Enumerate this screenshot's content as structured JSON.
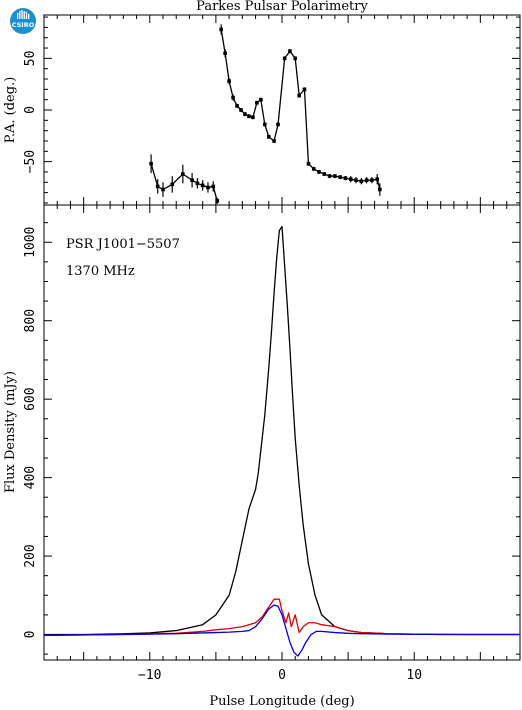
{
  "logo": {
    "text": "CSIRO",
    "color": "#1d8fd1"
  },
  "chart_data": [
    {
      "type": "scatter",
      "panel": "position-angle",
      "title": "Parkes Pulsar Polarimetry",
      "ylabel": "P.A. (deg.)",
      "xlim": [
        -18,
        18
      ],
      "ylim": [
        -92,
        92
      ],
      "yticks": [
        -50,
        0,
        50
      ],
      "xticks": [
        -10,
        0,
        10
      ],
      "color": "#000000",
      "series": [
        {
          "points": [
            {
              "x": -9.9,
              "y": -52,
              "err": 9
            },
            {
              "x": -9.4,
              "y": -74,
              "err": 7
            },
            {
              "x": -9.0,
              "y": -77,
              "err": 7
            },
            {
              "x": -8.3,
              "y": -72,
              "err": 8
            },
            {
              "x": -7.5,
              "y": -62,
              "err": 9
            },
            {
              "x": -6.8,
              "y": -68,
              "err": 7
            },
            {
              "x": -6.4,
              "y": -71,
              "err": 5
            },
            {
              "x": -6.0,
              "y": -73,
              "err": 5
            },
            {
              "x": -5.6,
              "y": -75,
              "err": 5
            },
            {
              "x": -5.2,
              "y": -74,
              "err": 5
            },
            {
              "x": -4.9,
              "y": -88,
              "err": 3
            }
          ]
        },
        {
          "points": [
            {
              "x": -4.6,
              "y": 78,
              "err": 5
            },
            {
              "x": -4.3,
              "y": 55,
              "err": 4
            },
            {
              "x": -4.0,
              "y": 28,
              "err": 3
            },
            {
              "x": -3.7,
              "y": 12,
              "err": 3
            },
            {
              "x": -3.4,
              "y": 4,
              "err": 2
            },
            {
              "x": -3.1,
              "y": 0,
              "err": 2
            },
            {
              "x": -2.8,
              "y": -4,
              "err": 2
            },
            {
              "x": -2.5,
              "y": -6,
              "err": 2
            },
            {
              "x": -2.2,
              "y": -7,
              "err": 2
            },
            {
              "x": -1.9,
              "y": 7,
              "err": 2
            },
            {
              "x": -1.6,
              "y": 10,
              "err": 2
            },
            {
              "x": -1.3,
              "y": -14,
              "err": 2
            },
            {
              "x": -1.0,
              "y": -26,
              "err": 2
            },
            {
              "x": -0.6,
              "y": -30,
              "err": 2
            },
            {
              "x": -0.3,
              "y": -14,
              "err": 2
            },
            {
              "x": 0.2,
              "y": 50,
              "err": 2
            },
            {
              "x": 0.6,
              "y": 57,
              "err": 2
            },
            {
              "x": 1.0,
              "y": 50,
              "err": 2
            },
            {
              "x": 1.3,
              "y": 14,
              "err": 2
            },
            {
              "x": 1.7,
              "y": 20,
              "err": 2
            },
            {
              "x": 2.0,
              "y": -52,
              "err": 2
            },
            {
              "x": 2.4,
              "y": -57,
              "err": 2
            },
            {
              "x": 2.8,
              "y": -60,
              "err": 2
            },
            {
              "x": 3.2,
              "y": -62,
              "err": 2
            },
            {
              "x": 3.6,
              "y": -64,
              "err": 2
            },
            {
              "x": 4.0,
              "y": -64,
              "err": 2
            },
            {
              "x": 4.4,
              "y": -65,
              "err": 2
            },
            {
              "x": 4.8,
              "y": -66,
              "err": 2
            },
            {
              "x": 5.2,
              "y": -67,
              "err": 3
            },
            {
              "x": 5.6,
              "y": -68,
              "err": 3
            },
            {
              "x": 6.0,
              "y": -69,
              "err": 3
            },
            {
              "x": 6.4,
              "y": -68,
              "err": 3
            },
            {
              "x": 6.8,
              "y": -68,
              "err": 3
            },
            {
              "x": 7.2,
              "y": -67,
              "err": 5
            },
            {
              "x": 7.4,
              "y": -77,
              "err": 6
            }
          ]
        }
      ]
    },
    {
      "type": "line",
      "panel": "flux-density",
      "xlabel": "Pulse Longitude (deg)",
      "ylabel": "Flux Density (mJy)",
      "xlim": [
        -18,
        18
      ],
      "ylim": [
        -65,
        1095
      ],
      "yticks": [
        0,
        200,
        400,
        600,
        800,
        1000
      ],
      "xticks": [
        -10,
        0,
        10
      ],
      "annotations": [
        "PSR J1001−5507",
        "1370 MHz"
      ],
      "series": [
        {
          "color": "#000000",
          "x": [
            -18,
            -15,
            -12,
            -10,
            -8,
            -6,
            -5,
            -4,
            -3.5,
            -3,
            -2.5,
            -2.2,
            -2,
            -1.8,
            -1.6,
            -1.3,
            -1,
            -0.8,
            -0.6,
            -0.4,
            -0.2,
            0,
            0.2,
            0.4,
            0.6,
            0.8,
            1,
            1.3,
            1.6,
            2,
            2.5,
            3,
            4,
            5,
            6,
            8,
            10,
            14,
            18
          ],
          "y": [
            0,
            0,
            2,
            4,
            10,
            25,
            50,
            100,
            160,
            240,
            320,
            350,
            370,
            410,
            470,
            560,
            680,
            770,
            870,
            960,
            1030,
            1040,
            940,
            840,
            730,
            610,
            500,
            380,
            280,
            180,
            100,
            50,
            20,
            10,
            5,
            2,
            1,
            0,
            0
          ]
        },
        {
          "color": "#e00000",
          "x": [
            -18,
            -12,
            -8,
            -6,
            -5,
            -4,
            -3,
            -2.5,
            -2,
            -1.5,
            -1,
            -0.6,
            -0.2,
            0,
            0.3,
            0.5,
            0.7,
            1,
            1.3,
            1.6,
            2,
            2.5,
            3,
            4,
            5,
            6,
            8,
            12,
            18
          ],
          "y": [
            -2,
            0,
            3,
            8,
            12,
            15,
            20,
            25,
            30,
            45,
            70,
            90,
            90,
            60,
            30,
            55,
            20,
            50,
            5,
            20,
            30,
            30,
            25,
            20,
            10,
            5,
            2,
            0,
            0
          ]
        },
        {
          "color": "#0000e0",
          "x": [
            -18,
            -12,
            -8,
            -6,
            -5,
            -4,
            -3,
            -2.5,
            -2,
            -1.5,
            -1,
            -0.6,
            -0.3,
            0,
            0.3,
            0.6,
            0.9,
            1.2,
            1.5,
            1.8,
            2.2,
            2.6,
            3,
            4,
            5,
            6,
            8,
            12,
            18
          ],
          "y": [
            -2,
            0,
            2,
            4,
            5,
            6,
            8,
            10,
            20,
            40,
            65,
            75,
            72,
            50,
            15,
            -20,
            -45,
            -55,
            -40,
            -20,
            0,
            8,
            8,
            5,
            3,
            2,
            1,
            0,
            0
          ]
        }
      ]
    }
  ]
}
